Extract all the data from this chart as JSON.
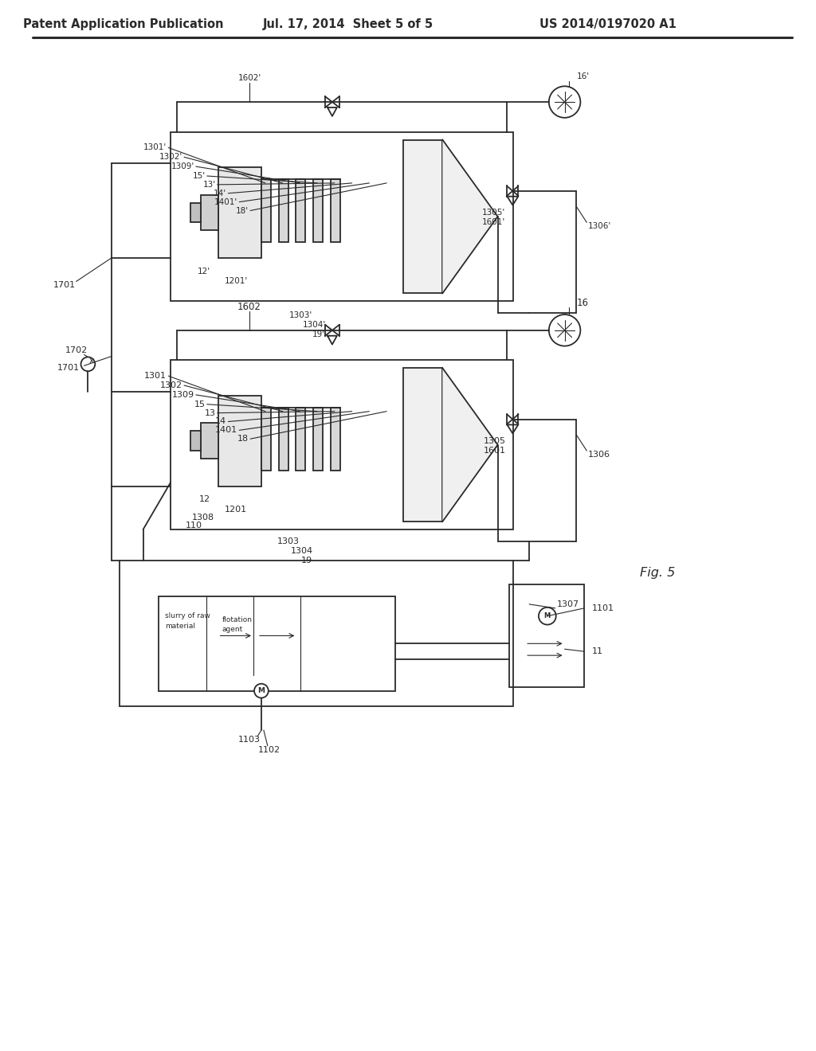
{
  "bg_color": "#ffffff",
  "line_color": "#2a2a2a",
  "header_left": "Patent Application Publication",
  "header_mid": "Jul. 17, 2014  Sheet 5 of 5",
  "header_right": "US 2014/0197020 A1",
  "fig_label": "Fig. 5",
  "title_fontsize": 10.5,
  "label_fontsize": 7.5
}
